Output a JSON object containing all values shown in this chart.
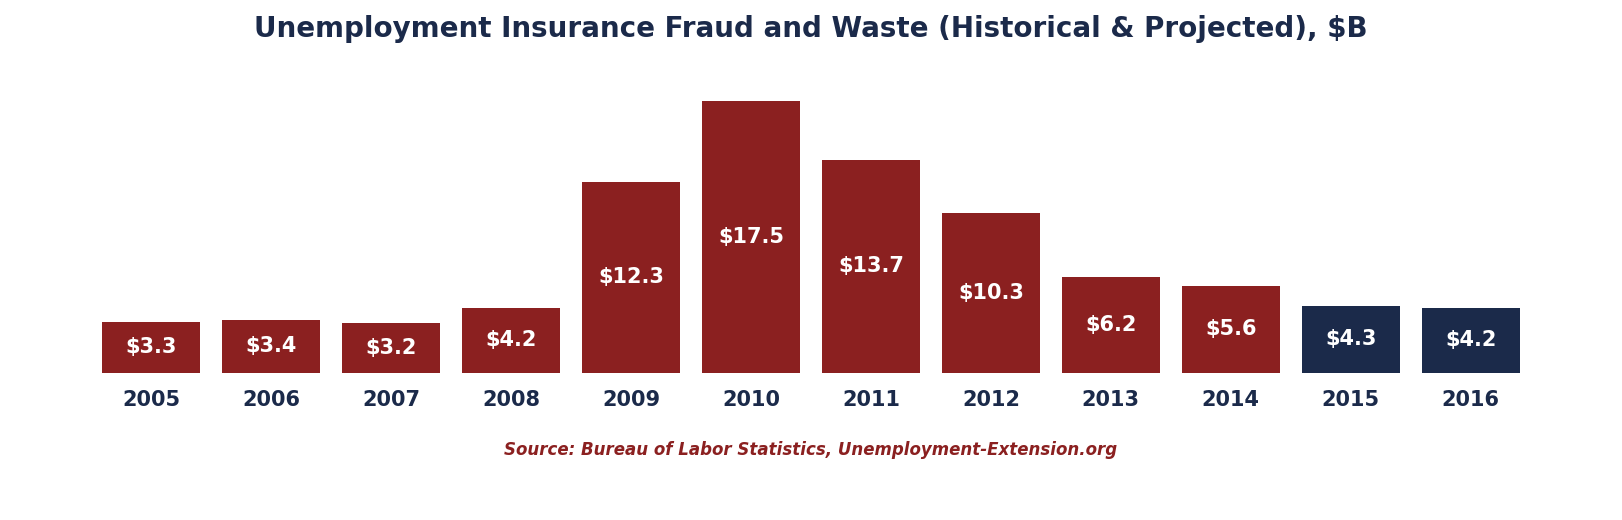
{
  "title": "Unemployment Insurance Fraud and Waste (Historical & Projected), $B",
  "categories": [
    "2005",
    "2006",
    "2007",
    "2008",
    "2009",
    "2010",
    "2011",
    "2012",
    "2013",
    "2014",
    "2015",
    "2016"
  ],
  "values": [
    3.3,
    3.4,
    3.2,
    4.2,
    12.3,
    17.5,
    13.7,
    10.3,
    6.2,
    5.6,
    4.3,
    4.2
  ],
  "labels": [
    "$3.3",
    "$3.4",
    "$3.2",
    "$4.2",
    "$12.3",
    "$17.5",
    "$13.7",
    "$10.3",
    "$6.2",
    "$5.6",
    "$4.3",
    "$4.2"
  ],
  "bar_colors": [
    "#8B2020",
    "#8B2020",
    "#8B2020",
    "#8B2020",
    "#8B2020",
    "#8B2020",
    "#8B2020",
    "#8B2020",
    "#8B2020",
    "#8B2020",
    "#1B2A4A",
    "#1B2A4A"
  ],
  "label_color": "#FFFFFF",
  "title_color": "#1B2A4A",
  "source_text": "Source: Bureau of Labor Statistics, Unemployment-Extension.org",
  "source_color": "#8B2020",
  "xlabel_fontsize": 15,
  "title_fontsize": 20,
  "label_fontsize": 15,
  "source_fontsize": 12,
  "background_color": "#FFFFFF",
  "ylim": [
    0,
    20.0
  ],
  "bar_width": 0.82
}
